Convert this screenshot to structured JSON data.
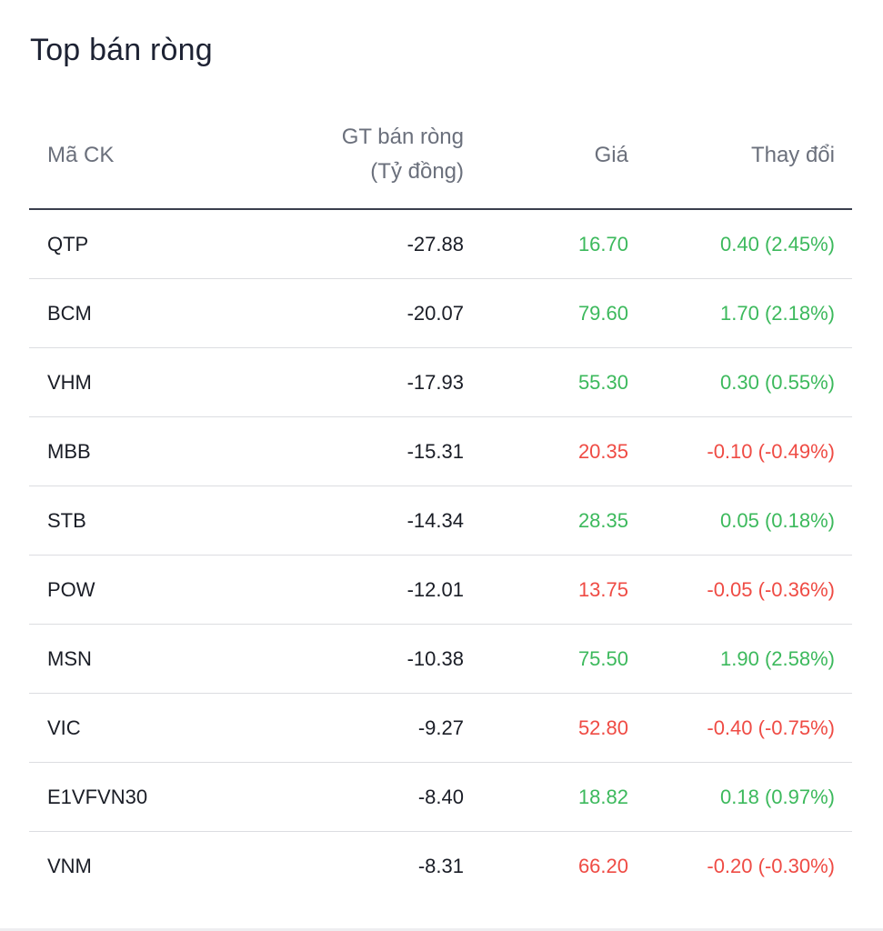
{
  "widget": {
    "title": "Top bán ròng"
  },
  "columns": {
    "code": "Mã CK",
    "value_line1": "GT bán ròng",
    "value_line2": "(Tỷ đồng)",
    "price": "Giá",
    "change": "Thay đổi"
  },
  "colors": {
    "up": "#3cb95c",
    "down": "#ef4b44"
  },
  "rows": [
    {
      "code": "QTP",
      "value": "-27.88",
      "price": "16.70",
      "change": "0.40 (2.45%)",
      "trend": "up"
    },
    {
      "code": "BCM",
      "value": "-20.07",
      "price": "79.60",
      "change": "1.70 (2.18%)",
      "trend": "up"
    },
    {
      "code": "VHM",
      "value": "-17.93",
      "price": "55.30",
      "change": "0.30 (0.55%)",
      "trend": "up"
    },
    {
      "code": "MBB",
      "value": "-15.31",
      "price": "20.35",
      "change": "-0.10 (-0.49%)",
      "trend": "down"
    },
    {
      "code": "STB",
      "value": "-14.34",
      "price": "28.35",
      "change": "0.05 (0.18%)",
      "trend": "up"
    },
    {
      "code": "POW",
      "value": "-12.01",
      "price": "13.75",
      "change": "-0.05 (-0.36%)",
      "trend": "down"
    },
    {
      "code": "MSN",
      "value": "-10.38",
      "price": "75.50",
      "change": "1.90 (2.58%)",
      "trend": "up"
    },
    {
      "code": "VIC",
      "value": "-9.27",
      "price": "52.80",
      "change": "-0.40 (-0.75%)",
      "trend": "down"
    },
    {
      "code": "E1VFVN30",
      "value": "-8.40",
      "price": "18.82",
      "change": "0.18 (0.97%)",
      "trend": "up"
    },
    {
      "code": "VNM",
      "value": "-8.31",
      "price": "66.20",
      "change": "-0.20 (-0.30%)",
      "trend": "down"
    }
  ]
}
